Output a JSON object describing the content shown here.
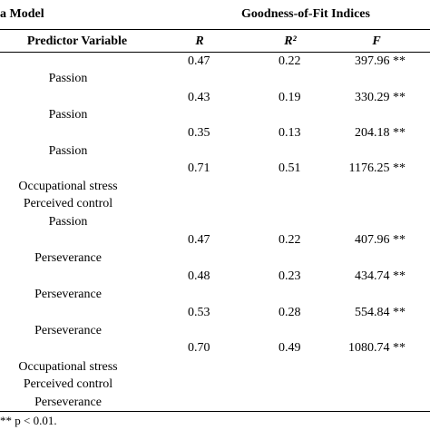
{
  "header": {
    "model_label": "a Model",
    "gof_label": "Goodness-of-Fit Indices",
    "predictor_label": "Predictor Variable",
    "col_r": "R",
    "col_r2": "R²",
    "col_f": "F"
  },
  "rows": [
    {
      "r": "0.47",
      "r2": "0.22",
      "f": "397.96 **"
    },
    {
      "predictor": "Passion"
    },
    {
      "r": "0.43",
      "r2": "0.19",
      "f": "330.29 **"
    },
    {
      "predictor": "Passion"
    },
    {
      "r": "0.35",
      "r2": "0.13",
      "f": "204.18 **"
    },
    {
      "predictor": "Passion"
    },
    {
      "r": "0.71",
      "r2": "0.51",
      "f": "1176.25 **"
    },
    {
      "predictor": "Occupational stress"
    },
    {
      "predictor": "Perceived control"
    },
    {
      "predictor": "Passion"
    },
    {
      "r": "0.47",
      "r2": "0.22",
      "f": "407.96 **"
    },
    {
      "predictor": "Perseverance"
    },
    {
      "r": "0.48",
      "r2": "0.23",
      "f": "434.74 **"
    },
    {
      "predictor": "Perseverance"
    },
    {
      "r": "0.53",
      "r2": "0.28",
      "f": "554.84 **"
    },
    {
      "predictor": "Perseverance"
    },
    {
      "r": "0.70",
      "r2": "0.49",
      "f": "1080.74 **"
    },
    {
      "predictor": "Occupational stress"
    },
    {
      "predictor": "Perceived control"
    },
    {
      "predictor": "Perseverance"
    }
  ],
  "footnote": "** p < 0.01."
}
